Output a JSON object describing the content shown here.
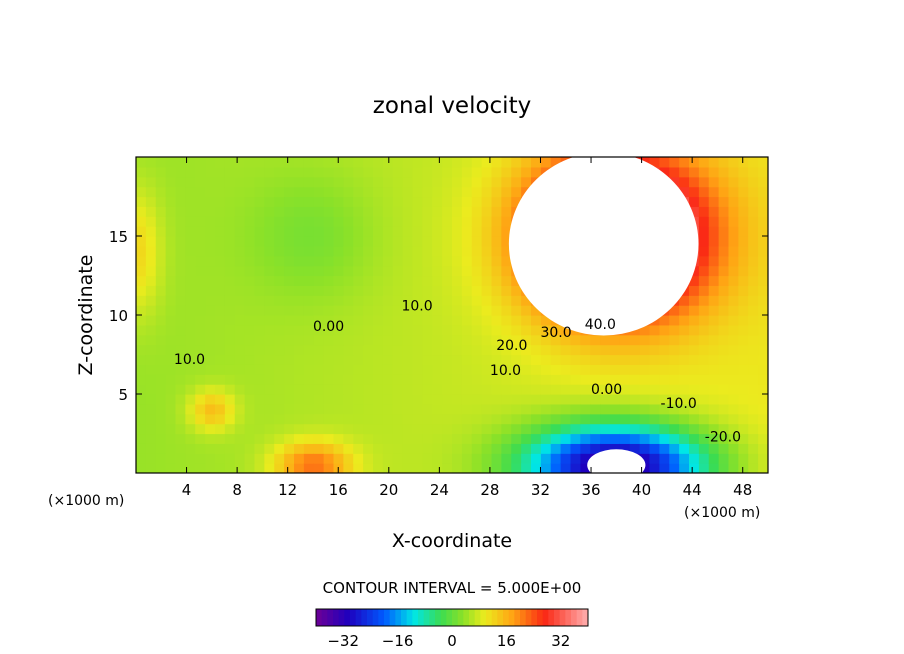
{
  "chart_data": {
    "type": "heatmap",
    "title": "zonal velocity",
    "xlabel": "X-coordinate",
    "ylabel": "Z-coordinate",
    "x_units": "(×1000 m)",
    "x_units_right": "(×1000 m)",
    "xlim": [
      0,
      50
    ],
    "ylim": [
      0,
      20
    ],
    "xticks": [
      4,
      8,
      12,
      16,
      20,
      24,
      28,
      32,
      36,
      40,
      44,
      48
    ],
    "yticks": [
      5,
      10,
      15
    ],
    "contour_interval_text": "CONTOUR INTERVAL = 5.000E+00",
    "contour_labels": [
      {
        "text": "0.00",
        "x": 14,
        "y": 9.0
      },
      {
        "text": "10.0",
        "x": 21,
        "y": 10.3
      },
      {
        "text": "10.0",
        "x": 3.0,
        "y": 6.9
      },
      {
        "text": "20.0",
        "x": 28.5,
        "y": 7.8
      },
      {
        "text": "30.0",
        "x": 32,
        "y": 8.6
      },
      {
        "text": "40.0",
        "x": 35.5,
        "y": 9.1
      },
      {
        "text": "10.0",
        "x": 28,
        "y": 6.2
      },
      {
        "text": "0.00",
        "x": 36,
        "y": 5.0
      },
      {
        "text": "-10.0",
        "x": 41.5,
        "y": 4.1
      },
      {
        "text": "-20.0",
        "x": 45,
        "y": 2.0
      }
    ],
    "features": [
      {
        "kind": "jet",
        "x": 38,
        "y": 15,
        "sx": 7,
        "sy": 5,
        "amp": 48
      },
      {
        "kind": "jet",
        "x": 38,
        "y": 0.5,
        "sx": 7,
        "sy": 2.5,
        "amp": -44
      },
      {
        "kind": "eddy",
        "x": 14,
        "y": 15,
        "sx": 5,
        "sy": 4,
        "amp": -4
      },
      {
        "kind": "eddy",
        "x": 14,
        "y": 0.5,
        "sx": 3,
        "sy": 1.5,
        "amp": 16
      },
      {
        "kind": "eddy",
        "x": 6,
        "y": 4,
        "sx": 1.8,
        "sy": 1.3,
        "amp": 10
      },
      {
        "kind": "eddy",
        "x": 0,
        "y": 14,
        "sx": 2,
        "sy": 4,
        "amp": 8
      }
    ],
    "blank_regions": [
      {
        "x": 37,
        "y": 14.5,
        "rx": 7.5,
        "ry": 5.8
      },
      {
        "x": 38,
        "y": 0.5,
        "rx": 2.3,
        "ry": 1.0
      }
    ],
    "colorbar": {
      "min": -40,
      "max": 40,
      "ticks": [
        -32,
        -16,
        0,
        16,
        32
      ],
      "tick_labels": [
        "−32",
        "−16",
        "0",
        "16",
        "32"
      ]
    }
  }
}
